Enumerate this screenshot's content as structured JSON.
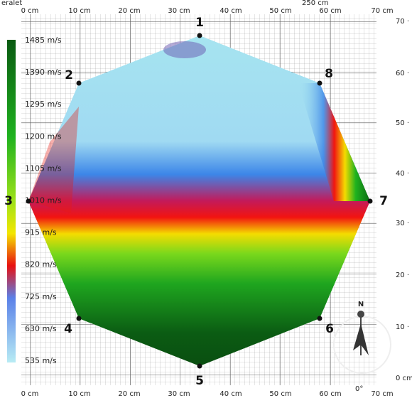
{
  "header": {
    "left": "eralet",
    "right": "250 cm"
  },
  "top_axis": [
    "0 cm",
    "10 cm",
    "20 cm",
    "30 cm",
    "40 cm",
    "50 cm",
    "60 cm",
    "70 cm"
  ],
  "bottom_axis": [
    "0 cm",
    "10 cm",
    "20 cm",
    "30 cm",
    "40 cm",
    "50 cm",
    "60 cm",
    "70 cm"
  ],
  "angle": "0°",
  "right_axis": [
    "70 ·",
    "60 ·",
    "50 ·",
    "40 ·",
    "30 ·",
    "20 ·",
    "10 ·",
    "0 cm"
  ],
  "legend": [
    "1485 m/s",
    "1390 m/s",
    "1295 m/s",
    "1200 m/s",
    "1105 m/s",
    "1010 m/s",
    "915 m/s",
    "820 m/s",
    "725 m/s",
    "630 m/s",
    "535 m/s"
  ],
  "sensors": [
    "1",
    "2",
    "3",
    "4",
    "5",
    "6",
    "7",
    "8"
  ],
  "compass": "N"
}
